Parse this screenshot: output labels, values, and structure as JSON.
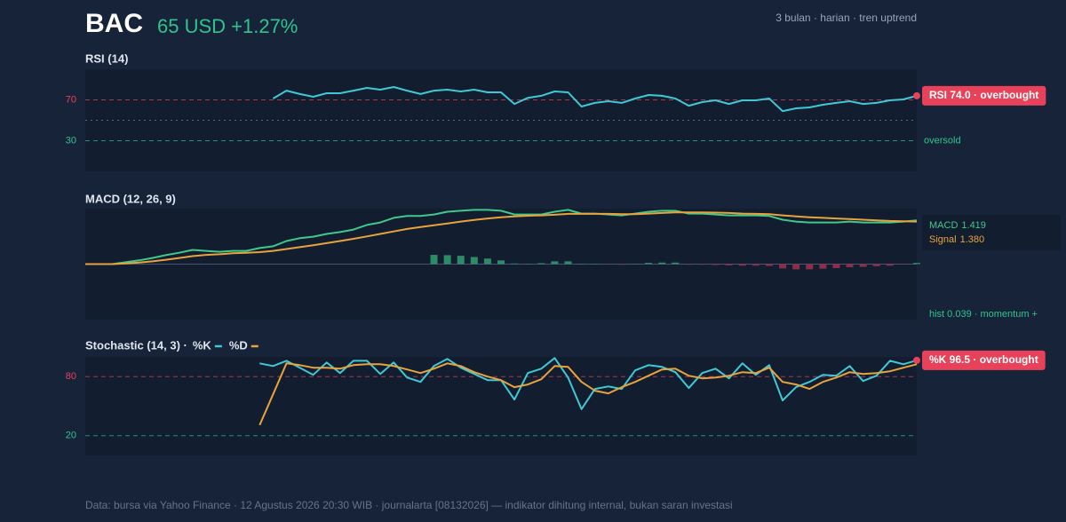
{
  "header": {
    "ticker": "BAC",
    "price": "65 USD +1.27%",
    "meta": "3 bulan · harian · tren uptrend"
  },
  "footer": "Data: bursa via Yahoo Finance · 12 Agustus 2026 20:30 WIB · journalarta [08132026] — indikator dihitung internal, bukan saran investasi",
  "chart_data": [
    {
      "type": "line",
      "title": "RSI (14)",
      "ylim": [
        0,
        100
      ],
      "yticks": [
        70,
        30
      ],
      "ytick_colors": [
        "#e8415a",
        "#2ec48f"
      ],
      "midline": 50,
      "badge": "RSI 74.0 · overbought",
      "low_label": "oversold",
      "series": [
        {
          "color": "#3ec9d6",
          "values": [
            null,
            null,
            null,
            null,
            null,
            null,
            null,
            null,
            null,
            null,
            null,
            null,
            null,
            null,
            71.3,
            79,
            75.7,
            73,
            76.5,
            76.5,
            79,
            81.7,
            80,
            82.6,
            79,
            75.7,
            79,
            80,
            78.3,
            80,
            77.4,
            77.4,
            66,
            72,
            74,
            78.3,
            77.4,
            63.5,
            67,
            68.7,
            67,
            71.3,
            74.8,
            74,
            71.3,
            64.3,
            67.8,
            69.6,
            66,
            69.6,
            69.6,
            71.3,
            59,
            61.7,
            62.6,
            65.2,
            67,
            68.7,
            66,
            67,
            69.6,
            70.4,
            74
          ]
        }
      ]
    },
    {
      "type": "line",
      "title": "MACD (12, 26, 9)",
      "ylim": [
        -1.8,
        1.8
      ],
      "zero_line": true,
      "series": [
        {
          "name": "MACD",
          "last_label": "1.419",
          "color": "#3fc98a",
          "values": [
            0,
            0,
            0,
            0.06,
            0.12,
            0.2,
            0.29,
            0.37,
            0.46,
            0.43,
            0.4,
            0.43,
            0.43,
            0.52,
            0.58,
            0.75,
            0.84,
            0.89,
            0.98,
            1.04,
            1.12,
            1.27,
            1.35,
            1.5,
            1.56,
            1.56,
            1.61,
            1.7,
            1.73,
            1.76,
            1.76,
            1.73,
            1.61,
            1.61,
            1.61,
            1.7,
            1.76,
            1.64,
            1.64,
            1.61,
            1.58,
            1.64,
            1.7,
            1.73,
            1.73,
            1.64,
            1.64,
            1.61,
            1.58,
            1.58,
            1.58,
            1.56,
            1.44,
            1.38,
            1.35,
            1.35,
            1.35,
            1.38,
            1.35,
            1.35,
            1.35,
            1.38,
            1.419
          ]
        },
        {
          "name": "Signal",
          "last_label": "1.380",
          "color": "#e8a33c",
          "values": [
            0,
            0,
            0,
            0.02,
            0.05,
            0.09,
            0.14,
            0.2,
            0.26,
            0.3,
            0.32,
            0.35,
            0.37,
            0.39,
            0.43,
            0.49,
            0.55,
            0.61,
            0.68,
            0.75,
            0.82,
            0.9,
            0.98,
            1.06,
            1.14,
            1.2,
            1.26,
            1.32,
            1.38,
            1.43,
            1.48,
            1.52,
            1.55,
            1.57,
            1.58,
            1.6,
            1.63,
            1.63,
            1.63,
            1.63,
            1.62,
            1.62,
            1.64,
            1.66,
            1.68,
            1.68,
            1.68,
            1.67,
            1.66,
            1.64,
            1.63,
            1.62,
            1.58,
            1.55,
            1.52,
            1.5,
            1.48,
            1.46,
            1.44,
            1.42,
            1.4,
            1.39,
            1.38
          ]
        },
        {
          "kind": "bar",
          "label": "hist 0.039 · momentum +",
          "color": "#2ec48f",
          "color_up": "#2e8b68",
          "color_down": "#8e2d48",
          "values": [
            0,
            0,
            0,
            0,
            0,
            0,
            0,
            0,
            0,
            0,
            0,
            0,
            0,
            0,
            0,
            0,
            0,
            0,
            0,
            0,
            0,
            0,
            0,
            0,
            0,
            0,
            0.3,
            0.29,
            0.27,
            0.23,
            0.18,
            0.12,
            0.02,
            0.01,
            0.03,
            0.09,
            0.09,
            0.01,
            0.01,
            -0.01,
            -0.02,
            0.01,
            0.04,
            0.05,
            0.05,
            -0.02,
            -0.02,
            -0.03,
            -0.04,
            -0.05,
            -0.05,
            -0.06,
            -0.14,
            -0.17,
            -0.17,
            -0.15,
            -0.13,
            -0.1,
            -0.09,
            -0.07,
            -0.05,
            -0.01,
            0.039
          ]
        }
      ]
    },
    {
      "type": "line",
      "title": "Stochastic (14, 3) ·",
      "ylim": [
        0,
        100
      ],
      "yticks": [
        80,
        20
      ],
      "ytick_colors": [
        "#e8415a",
        "#2ec48f"
      ],
      "badge": "%K 96.5 · overbought",
      "series": [
        {
          "name": "%K",
          "color": "#3ec9d6",
          "values": [
            null,
            null,
            null,
            null,
            null,
            null,
            null,
            null,
            null,
            null,
            null,
            null,
            null,
            93.4,
            90.7,
            96,
            89,
            81.8,
            94.3,
            83.6,
            96,
            96,
            82.7,
            94.3,
            79,
            74.6,
            90.7,
            97.9,
            89,
            82.7,
            76.4,
            76.4,
            56.7,
            83.6,
            88,
            98.8,
            79,
            46.9,
            67.5,
            70,
            67.5,
            86.3,
            91.6,
            89.8,
            84.5,
            68.4,
            83.6,
            88,
            78.2,
            93.4,
            81.8,
            91.6,
            55.8,
            69.3,
            74.6,
            81.8,
            80.9,
            90.7,
            75.5,
            80.9,
            96,
            92.5,
            96.5
          ]
        },
        {
          "name": "%D",
          "color": "#e8a33c",
          "values": [
            null,
            null,
            null,
            null,
            null,
            null,
            null,
            null,
            null,
            null,
            null,
            null,
            null,
            30.8,
            62,
            93.4,
            91.6,
            89,
            89,
            88,
            91.6,
            92.5,
            92.5,
            90.7,
            87.2,
            83.6,
            88,
            93.4,
            90.7,
            84.5,
            80,
            76.4,
            69.3,
            72,
            77.3,
            90.7,
            89.8,
            74.6,
            65.7,
            63,
            69.3,
            74.6,
            80.9,
            87.2,
            88,
            80.9,
            78.2,
            79,
            80.9,
            84.5,
            83.6,
            89,
            74.6,
            72,
            67.5,
            74.6,
            79,
            84.5,
            82.7,
            83.6,
            85.4,
            89,
            92.5
          ]
        }
      ]
    }
  ]
}
